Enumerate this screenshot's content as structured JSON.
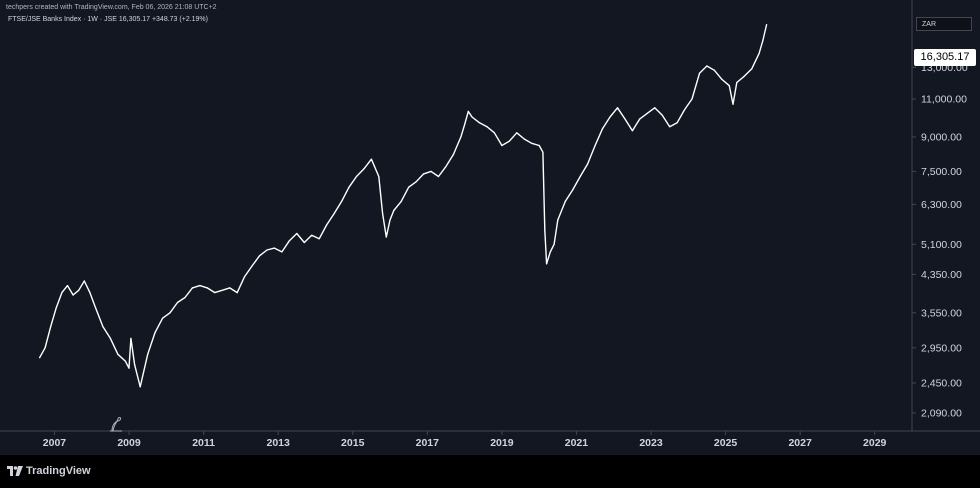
{
  "header": {
    "attribution": "techpers created with TradingView.com, Feb 06, 2026 21:08 UTC+2",
    "legend": "FTSE/JSE Banks Index · 1W · JSE  16,305.17  +348.73 (+2.19%)"
  },
  "price_scale": {
    "currency": "ZAR",
    "last_price": "16,305.17"
  },
  "brand": {
    "logo_text": "TradingView"
  },
  "colors": {
    "background": "#131722",
    "line": "#ffffff",
    "text": "#d1d4dc",
    "price_badge": "#ffffff"
  },
  "chart_data": {
    "type": "line",
    "title": "FTSE/JSE Banks Index",
    "log_scale": true,
    "grid": false,
    "ylim": [
      1900,
      17800
    ],
    "xlim": [
      2005.7,
      2030.0
    ],
    "y_ticks": [
      "2,090.00",
      "2,450.00",
      "2,950.00",
      "3,550.00",
      "4,350.00",
      "5,100.00",
      "6,300.00",
      "7,500.00",
      "9,000.00",
      "11,000.00",
      "13,000.00"
    ],
    "x_ticks": [
      "2007",
      "2009",
      "2011",
      "2013",
      "2015",
      "2017",
      "2019",
      "2021",
      "2023",
      "2025",
      "2027",
      "2029"
    ],
    "series": [
      {
        "x": [
          2006.6,
          2006.75,
          2006.9,
          2007.05,
          2007.2,
          2007.35,
          2007.5,
          2007.65,
          2007.8,
          2007.95,
          2008.1,
          2008.3,
          2008.5,
          2008.7,
          2008.9,
          2009.0,
          2009.05,
          2009.15,
          2009.3,
          2009.5,
          2009.7,
          2009.9,
          2010.1,
          2010.3,
          2010.5,
          2010.7,
          2010.9,
          2011.1,
          2011.3,
          2011.5,
          2011.7,
          2011.9,
          2012.1,
          2012.3,
          2012.5,
          2012.7,
          2012.9,
          2013.1,
          2013.3,
          2013.5,
          2013.7,
          2013.9,
          2014.1,
          2014.3,
          2014.5,
          2014.7,
          2014.9,
          2015.1,
          2015.3,
          2015.5,
          2015.7,
          2015.8,
          2015.9,
          2016.0,
          2016.1,
          2016.3,
          2016.5,
          2016.7,
          2016.9,
          2017.1,
          2017.3,
          2017.5,
          2017.7,
          2017.9,
          2018.0,
          2018.1,
          2018.2,
          2018.4,
          2018.6,
          2018.8,
          2019.0,
          2019.2,
          2019.4,
          2019.6,
          2019.8,
          2020.0,
          2020.1,
          2020.15,
          2020.2,
          2020.3,
          2020.4,
          2020.5,
          2020.7,
          2020.9,
          2021.1,
          2021.3,
          2021.5,
          2021.7,
          2021.9,
          2022.1,
          2022.3,
          2022.5,
          2022.7,
          2022.9,
          2023.1,
          2023.3,
          2023.5,
          2023.7,
          2023.9,
          2024.1,
          2024.3,
          2024.5,
          2024.7,
          2024.9,
          2025.1,
          2025.2,
          2025.3,
          2025.5,
          2025.7,
          2025.9,
          2026.0,
          2026.1
        ],
        "y": [
          2800,
          2950,
          3300,
          3650,
          3950,
          4100,
          3900,
          4000,
          4200,
          3950,
          3650,
          3300,
          3100,
          2850,
          2750,
          2650,
          3100,
          2700,
          2400,
          2850,
          3200,
          3450,
          3550,
          3750,
          3850,
          4050,
          4100,
          4050,
          3950,
          4000,
          4050,
          3950,
          4300,
          4550,
          4800,
          4950,
          5000,
          4900,
          5200,
          5400,
          5150,
          5350,
          5250,
          5650,
          6000,
          6400,
          6900,
          7300,
          7600,
          8000,
          7300,
          6000,
          5300,
          5800,
          6100,
          6400,
          6900,
          7100,
          7400,
          7500,
          7300,
          7700,
          8200,
          9000,
          9600,
          10300,
          10000,
          9700,
          9500,
          9200,
          8600,
          8800,
          9200,
          8900,
          8700,
          8600,
          8300,
          5500,
          4600,
          4900,
          5100,
          5800,
          6400,
          6800,
          7300,
          7800,
          8600,
          9400,
          10000,
          10500,
          9900,
          9300,
          9900,
          10200,
          10500,
          10100,
          9500,
          9700,
          10400,
          11000,
          12600,
          13100,
          12800,
          12200,
          11800,
          10700,
          12000,
          12400,
          12900,
          14000,
          15000,
          16305
        ]
      }
    ]
  }
}
